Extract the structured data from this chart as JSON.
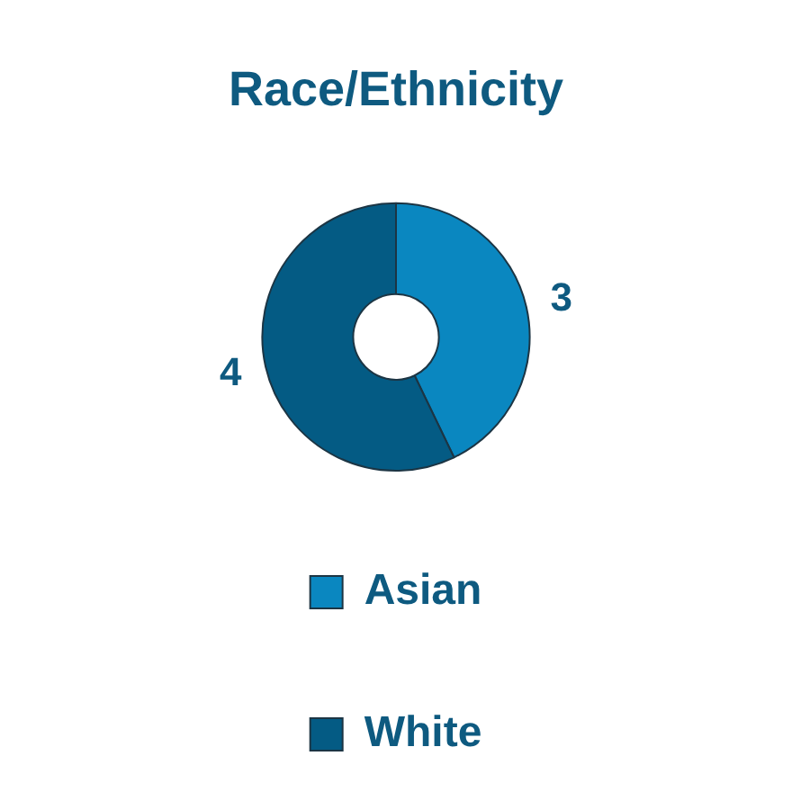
{
  "chart_data": {
    "type": "donut",
    "title": "Race/Ethnicity",
    "categories": [
      "Asian",
      "White"
    ],
    "values": [
      3,
      4
    ],
    "colors": [
      "#0a87c0",
      "#045b84"
    ],
    "data_labels": true,
    "legend": "bottom"
  }
}
